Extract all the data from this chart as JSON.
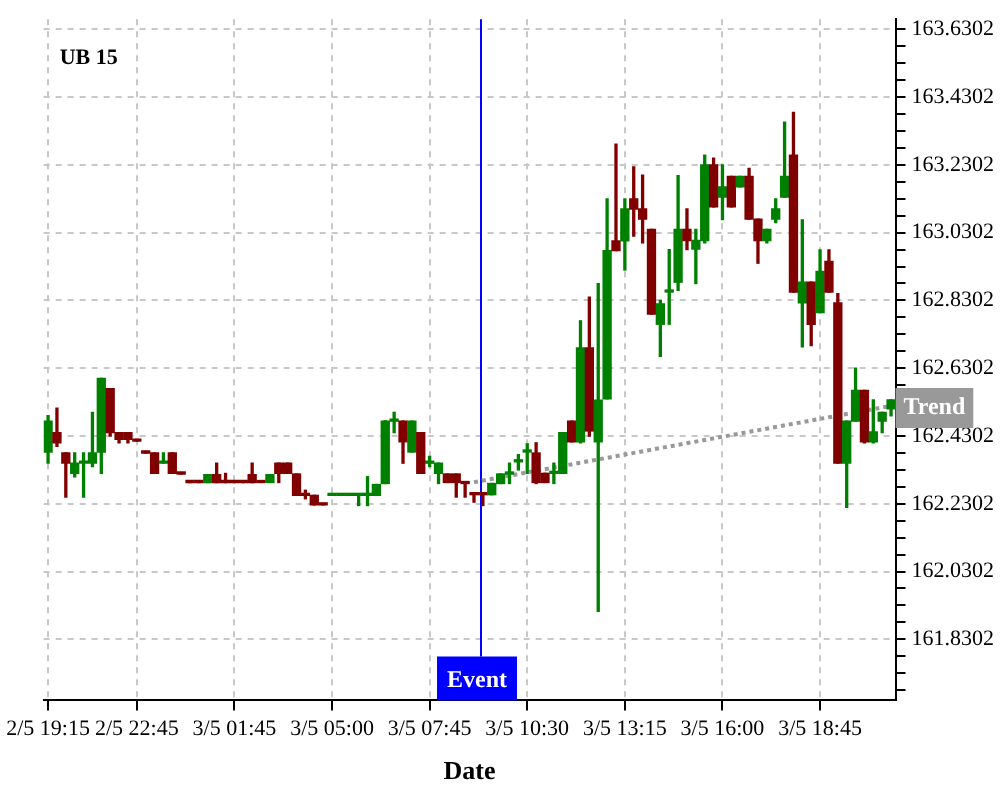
{
  "chart_data": {
    "type": "candlestick",
    "title": "UB 15",
    "xlabel": "Date",
    "categories": [
      "2/5 19:15",
      null,
      null,
      null,
      null,
      null,
      null,
      null,
      null,
      null,
      "2/5 22:45",
      null,
      null,
      null,
      null,
      null,
      null,
      null,
      null,
      null,
      null,
      "3/5 01:45",
      null,
      null,
      null,
      null,
      null,
      null,
      null,
      null,
      null,
      null,
      "3/5 05:00",
      null,
      null,
      null,
      null,
      null,
      null,
      null,
      null,
      null,
      null,
      "3/5 07:45",
      null,
      null,
      null,
      null,
      null,
      null,
      null,
      null,
      null,
      null,
      "3/5 10:30",
      null,
      null,
      null,
      null,
      null,
      null,
      null,
      null,
      null,
      null,
      "3/5 13:15",
      null,
      null,
      null,
      null,
      null,
      null,
      null,
      null,
      null,
      null,
      "3/5 16:00",
      null,
      null,
      null,
      null,
      null,
      null,
      null,
      null,
      null,
      null,
      "3/5 18:45",
      null,
      null,
      null,
      null,
      null,
      null,
      null,
      null
    ],
    "ohlc": [
      [
        162.383,
        162.49,
        162.35,
        162.474
      ],
      [
        162.44,
        162.512,
        162.4,
        162.41
      ],
      [
        162.38,
        162.38,
        162.25,
        162.35
      ],
      [
        162.32,
        162.38,
        162.31,
        162.35
      ],
      [
        162.35,
        162.38,
        162.25,
        162.355
      ],
      [
        162.35,
        162.5,
        162.34,
        162.38
      ],
      [
        162.383,
        162.6,
        162.32,
        162.6
      ],
      [
        162.57,
        162.57,
        162.43,
        162.44
      ],
      [
        162.44,
        162.44,
        162.41,
        162.42
      ],
      [
        162.44,
        162.44,
        162.41,
        162.42
      ],
      [
        162.42,
        162.42,
        162.415,
        162.415
      ],
      [
        162.385,
        162.385,
        162.38,
        162.38
      ],
      [
        162.38,
        162.38,
        162.32,
        162.32
      ],
      [
        162.35,
        162.38,
        162.35,
        162.355
      ],
      [
        162.38,
        162.38,
        162.32,
        162.32
      ],
      [
        162.32,
        162.32,
        162.318,
        162.318
      ],
      [
        162.295,
        162.295,
        162.293,
        162.293
      ],
      [
        162.295,
        162.295,
        162.293,
        162.293
      ],
      [
        162.293,
        162.316,
        162.293,
        162.316
      ],
      [
        162.316,
        162.35,
        162.293,
        162.293
      ],
      [
        162.295,
        162.32,
        162.293,
        162.293
      ],
      [
        162.295,
        162.295,
        162.293,
        162.293
      ],
      [
        162.295,
        162.295,
        162.293,
        162.293
      ],
      [
        162.316,
        162.35,
        162.293,
        162.293
      ],
      [
        162.295,
        162.295,
        162.293,
        162.293
      ],
      [
        162.293,
        162.316,
        162.293,
        162.316
      ],
      [
        162.35,
        162.35,
        162.293,
        162.32
      ],
      [
        162.35,
        162.35,
        162.32,
        162.32
      ],
      [
        162.318,
        162.318,
        162.255,
        162.255
      ],
      [
        162.26,
        162.27,
        162.245,
        162.255
      ],
      [
        162.255,
        162.255,
        162.227,
        162.227
      ],
      [
        162.229,
        162.229,
        162.227,
        162.227
      ],
      [
        162.255,
        162.257,
        162.255,
        162.257
      ],
      [
        162.255,
        162.257,
        162.255,
        162.257
      ],
      [
        162.255,
        162.257,
        162.255,
        162.257
      ],
      [
        162.255,
        162.257,
        162.225,
        162.257
      ],
      [
        162.255,
        162.31,
        162.225,
        162.257
      ],
      [
        162.255,
        162.287,
        162.255,
        162.287
      ],
      [
        162.29,
        162.475,
        162.29,
        162.474
      ],
      [
        162.474,
        162.5,
        162.44,
        162.476
      ],
      [
        162.474,
        162.474,
        162.35,
        162.413
      ],
      [
        162.383,
        162.474,
        162.383,
        162.474
      ],
      [
        162.44,
        162.44,
        162.32,
        162.32
      ],
      [
        162.35,
        162.37,
        162.34,
        162.352
      ],
      [
        162.32,
        162.35,
        162.29,
        162.35
      ],
      [
        162.318,
        162.318,
        162.293,
        162.293
      ],
      [
        162.318,
        162.318,
        162.25,
        162.293
      ],
      [
        162.293,
        162.293,
        162.25,
        162.29
      ],
      [
        162.26,
        162.26,
        162.235,
        162.257
      ],
      [
        162.258,
        162.258,
        162.225,
        162.257
      ],
      [
        162.257,
        162.29,
        162.257,
        162.29
      ],
      [
        162.29,
        162.318,
        162.29,
        162.318
      ],
      [
        162.318,
        162.35,
        162.29,
        162.32
      ],
      [
        162.354,
        162.375,
        162.33,
        162.356
      ],
      [
        162.383,
        162.407,
        162.32,
        162.385
      ],
      [
        162.38,
        162.41,
        162.29,
        162.293
      ],
      [
        162.32,
        162.32,
        162.293,
        162.293
      ],
      [
        162.32,
        162.35,
        162.29,
        162.322
      ],
      [
        162.32,
        162.44,
        162.32,
        162.44
      ],
      [
        162.474,
        162.474,
        162.413,
        162.413
      ],
      [
        162.413,
        162.77,
        162.41,
        162.69
      ],
      [
        162.69,
        162.84,
        162.43,
        162.445
      ],
      [
        162.413,
        162.88,
        161.913,
        162.536
      ],
      [
        162.54,
        163.13,
        162.54,
        162.977
      ],
      [
        163.006,
        163.291,
        162.977,
        162.977
      ],
      [
        163.006,
        163.13,
        162.92,
        163.1
      ],
      [
        163.13,
        163.224,
        163.02,
        163.1
      ],
      [
        163.1,
        163.2,
        163.0,
        163.07
      ],
      [
        163.04,
        163.04,
        162.79,
        162.79
      ],
      [
        162.76,
        162.83,
        162.665,
        162.82
      ],
      [
        162.855,
        162.98,
        162.76,
        162.857
      ],
      [
        162.884,
        163.198,
        162.86,
        163.04
      ],
      [
        163.04,
        163.1,
        162.98,
        163.007
      ],
      [
        162.982,
        163.04,
        162.88,
        163.007
      ],
      [
        163.007,
        163.259,
        163.0,
        163.23
      ],
      [
        163.23,
        163.25,
        163.106,
        163.106
      ],
      [
        163.135,
        163.23,
        163.069,
        163.165
      ],
      [
        163.196,
        163.196,
        163.106,
        163.106
      ],
      [
        163.165,
        163.196,
        163.165,
        163.196
      ],
      [
        163.196,
        163.22,
        163.07,
        163.07
      ],
      [
        163.07,
        163.07,
        162.94,
        163.007
      ],
      [
        163.007,
        163.04,
        163.0,
        163.04
      ],
      [
        163.07,
        163.13,
        163.06,
        163.1
      ],
      [
        163.135,
        163.356,
        163.135,
        163.196
      ],
      [
        163.259,
        163.385,
        162.855,
        162.855
      ],
      [
        162.823,
        163.068,
        162.693,
        162.884
      ],
      [
        162.884,
        162.884,
        162.697,
        162.76
      ],
      [
        162.794,
        162.979,
        162.794,
        162.916
      ],
      [
        162.945,
        162.979,
        162.855,
        162.855
      ],
      [
        162.823,
        162.85,
        162.35,
        162.35
      ],
      [
        162.35,
        162.474,
        162.22,
        162.474
      ],
      [
        162.474,
        162.63,
        162.474,
        162.565
      ],
      [
        162.565,
        162.565,
        162.41,
        162.413
      ],
      [
        162.413,
        162.537,
        162.41,
        162.442
      ],
      [
        162.474,
        162.5,
        162.44,
        162.5
      ],
      [
        162.51,
        162.537,
        162.49,
        162.537
      ]
    ],
    "colors": [
      "#008000",
      "#800000",
      "#800000",
      "#008000",
      "#008000",
      "#008000",
      "#008000",
      "#800000",
      "#800000",
      "#800000",
      "#800000",
      "#800000",
      "#800000",
      "#008000",
      "#800000",
      "#800000",
      "#800000",
      "#800000",
      "#008000",
      "#800000",
      "#800000",
      "#800000",
      "#800000",
      "#800000",
      "#800000",
      "#008000",
      "#800000",
      "#800000",
      "#800000",
      "#800000",
      "#800000",
      "#800000",
      "#008000",
      "#008000",
      "#008000",
      "#008000",
      "#008000",
      "#008000",
      "#008000",
      "#008000",
      "#800000",
      "#008000",
      "#800000",
      "#008000",
      "#008000",
      "#800000",
      "#800000",
      "#800000",
      "#800000",
      "#800000",
      "#008000",
      "#008000",
      "#008000",
      "#008000",
      "#008000",
      "#800000",
      "#800000",
      "#008000",
      "#008000",
      "#800000",
      "#008000",
      "#800000",
      "#008000",
      "#008000",
      "#800000",
      "#008000",
      "#800000",
      "#800000",
      "#800000",
      "#008000",
      "#008000",
      "#008000",
      "#800000",
      "#008000",
      "#008000",
      "#800000",
      "#008000",
      "#800000",
      "#008000",
      "#800000",
      "#800000",
      "#008000",
      "#008000",
      "#008000",
      "#800000",
      "#008000",
      "#800000",
      "#008000",
      "#800000",
      "#800000",
      "#008000",
      "#008000",
      "#800000",
      "#008000",
      "#008000",
      "#008000"
    ],
    "series": [
      {
        "type": "line",
        "name": "Trend",
        "color": "#999999",
        "line_style": "dotted",
        "values": [
          null,
          null,
          null,
          null,
          null,
          null,
          null,
          null,
          null,
          null,
          null,
          null,
          null,
          null,
          null,
          null,
          null,
          null,
          null,
          null,
          null,
          null,
          null,
          null,
          null,
          null,
          null,
          null,
          null,
          null,
          null,
          null,
          null,
          null,
          null,
          null,
          null,
          null,
          null,
          null,
          null,
          null,
          null,
          null,
          null,
          null,
          null,
          null,
          162.294,
          null,
          null,
          null,
          null,
          null,
          null,
          null,
          null,
          null,
          null,
          null,
          null,
          null,
          null,
          null,
          null,
          null,
          null,
          null,
          null,
          null,
          null,
          null,
          null,
          null,
          null,
          null,
          null,
          null,
          null,
          null,
          null,
          null,
          null,
          null,
          null,
          null,
          null,
          null,
          null,
          null,
          null,
          null,
          null,
          null,
          null,
          162.519
        ]
      }
    ],
    "annotations": [
      "Event"
    ],
    "ylim": [
      161.65,
      163.66
    ],
    "yticks": [
      {
        "value": 161.6802,
        "label": null
      },
      {
        "value": 161.7302,
        "label": null
      },
      {
        "value": 161.7802,
        "label": null
      },
      161.8302,
      {
        "value": 161.8802,
        "label": null
      },
      {
        "value": 161.9302,
        "label": null
      },
      {
        "value": 161.9802,
        "label": null
      },
      162.0302,
      {
        "value": 162.0802,
        "label": null
      },
      {
        "value": 162.1302,
        "label": null
      },
      {
        "value": 162.1802,
        "label": null
      },
      162.2302,
      {
        "value": 162.2802,
        "label": null
      },
      {
        "value": 162.3302,
        "label": null
      },
      {
        "value": 162.3802,
        "label": null
      },
      162.4302,
      {
        "value": 162.4802,
        "label": null
      },
      {
        "value": 162.5302,
        "label": null
      },
      {
        "value": 162.5802,
        "label": null
      },
      162.6302,
      {
        "value": 162.6802,
        "label": null
      },
      {
        "value": 162.7302,
        "label": null
      },
      {
        "value": 162.7802,
        "label": null
      },
      162.8302,
      {
        "value": 162.8802,
        "label": null
      },
      {
        "value": 162.9302,
        "label": null
      },
      {
        "value": 162.9802,
        "label": null
      },
      163.0302,
      {
        "value": 163.0802,
        "label": null
      },
      {
        "value": 163.1302,
        "label": null
      },
      {
        "value": 163.1802,
        "label": null
      },
      163.2302,
      {
        "value": 163.2802,
        "label": null
      },
      {
        "value": 163.3302,
        "label": null
      },
      {
        "value": 163.3802,
        "label": null
      },
      163.4302,
      {
        "value": 163.4802,
        "label": null
      },
      {
        "value": 163.5302,
        "label": null
      },
      {
        "value": 163.5802,
        "label": null
      },
      163.6302
    ],
    "grid": true,
    "legend": false
  }
}
